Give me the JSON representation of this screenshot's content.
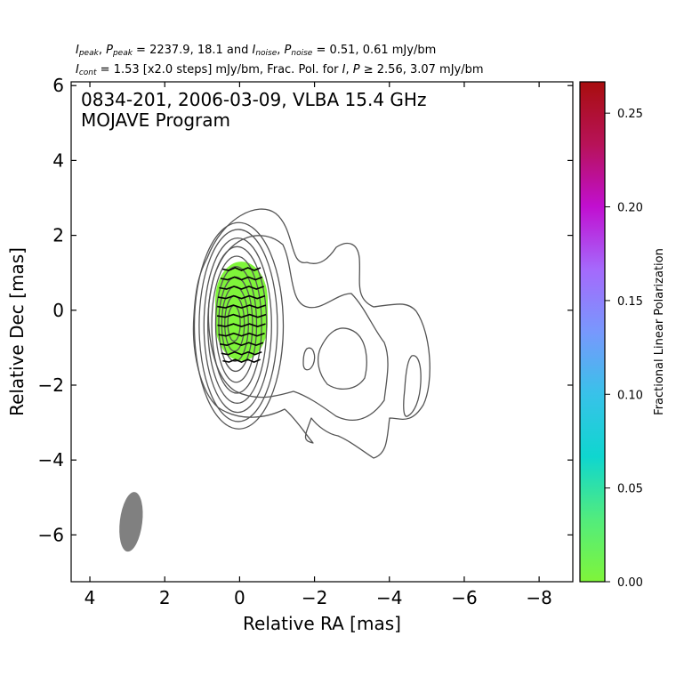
{
  "header": {
    "line1": {
      "i_sym": "I",
      "i_sub": "peak",
      "p_sym": "P",
      "p_sub": "peak",
      "peak_values": " = 2237.9, 18.1 and ",
      "in_sym": "I",
      "in_sub": "noise",
      "pn_sym": "P",
      "pn_sub": "noise",
      "noise_values": " = 0.51, 0.61 mJy/bm"
    },
    "line2": {
      "ic_sym": "I",
      "ic_sub": "cont",
      "cont_text": " = 1.53 [x2.0 steps] mJy/bm, Frac. Pol. for ",
      "i2_sym": "I",
      "sep": ", ",
      "p2_sym": "P",
      "thresh_text": " ≥ 2.56, 3.07 mJy/bm"
    }
  },
  "chart_data": {
    "type": "contour",
    "annotation_line1": "0834-201, 2006-03-09, VLBA 15.4 GHz",
    "annotation_line2": "MOJAVE Program",
    "xlabel": "Relative RA [mas]",
    "ylabel": "Relative Dec [mas]",
    "xlim": [
      4.5,
      -8.9
    ],
    "ylim": [
      -7.25,
      6.1
    ],
    "x_ticks": [
      4,
      2,
      0,
      -2,
      -4,
      -6,
      -8
    ],
    "x_tick_labels": [
      "4",
      "2",
      "0",
      "−2",
      "−4",
      "−6",
      "−8"
    ],
    "y_ticks": [
      6,
      4,
      2,
      0,
      -2,
      -4,
      -6
    ],
    "y_tick_labels": [
      "6",
      "4",
      "2",
      "0",
      "−2",
      "−4",
      "−6"
    ],
    "colorbar": {
      "label": "Fractional Linear Polarization",
      "min": 0.0,
      "max": 0.2667,
      "ticks": [
        0.0,
        0.05,
        0.1,
        0.15,
        0.2,
        0.25
      ],
      "tick_labels": [
        "0.00",
        "0.05",
        "0.10",
        "0.15",
        "0.20",
        "0.25"
      ],
      "colors": [
        "#7ff53a",
        "#52ec7d",
        "#0fd6cf",
        "#38c2e9",
        "#7898fd",
        "#a569fc",
        "#c10fd0",
        "#b71258",
        "#a80e0e"
      ]
    },
    "core": {
      "x": 0.15,
      "y": -0.35,
      "peak_mjy_per_beam": 2237.9
    },
    "polarized_region": {
      "x_range": [
        -0.75,
        0.65
      ],
      "y_range": [
        -1.35,
        1.3
      ],
      "fractional_polarization": 0.005,
      "color": "#7ff53a"
    },
    "evpa_ticks": {
      "direction": "east-west",
      "dec_positions": [
        1.1,
        0.85,
        0.6,
        0.35,
        0.1,
        -0.15,
        -0.4,
        -0.65,
        -0.9,
        -1.15,
        -1.35
      ]
    },
    "contour_levels_mjy": [
      1.53,
      3.06,
      6.12,
      12.24,
      24.48,
      48.96,
      97.92,
      195.84,
      391.68,
      783.36,
      1566.72
    ],
    "contour_color": "#555555",
    "beam": {
      "x": 2.9,
      "y": -5.65,
      "major_mas": 1.6,
      "minor_mas": 0.6,
      "pa_deg": -7,
      "color": "#808080"
    }
  }
}
